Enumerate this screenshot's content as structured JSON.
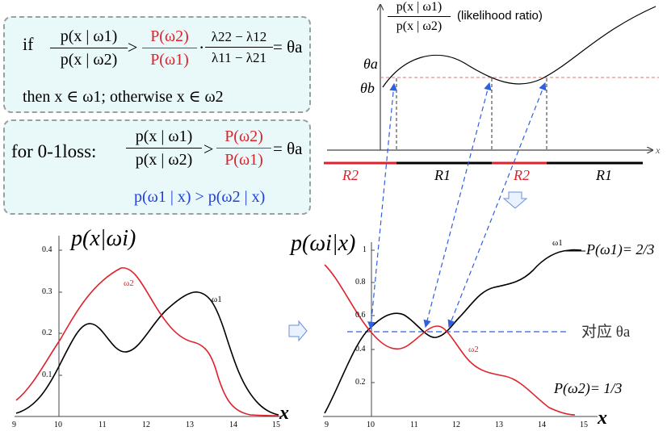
{
  "rule_box": {
    "if_word": "if",
    "likelihood_num": "p(x | ω1)",
    "likelihood_den": "p(x | ω2)",
    "gt": ">",
    "prior_num": "P(ω2)",
    "prior_den": "P(ω1)",
    "dot": "·",
    "loss_num": "λ22 − λ12",
    "loss_den": "λ11 − λ21",
    "equals_theta": "= θa",
    "then_line": "then   x ∈ ω1;  otherwise x ∈ ω2"
  },
  "zero_one_box": {
    "label": "for 0-1loss:",
    "likelihood_num": "p(x | ω1)",
    "likelihood_den": "p(x | ω2)",
    "gt": ">",
    "prior_num": "P(ω2)",
    "prior_den": "P(ω1)",
    "equals_theta": "= θa",
    "posterior_line": "p(ω1 | x) > p(ω2 | x)"
  },
  "ratio_plot": {
    "y_num": "p(x | ω1)",
    "y_den": "p(x | ω2)",
    "caption": "(likelihood ratio)",
    "theta_a": "θa",
    "theta_b": "θb",
    "x_label": "x",
    "regions": [
      "R2",
      "R1",
      "R2",
      "R1"
    ]
  },
  "likelihood_plot": {
    "title": "p(x|ωi)",
    "x_label": "x",
    "x_ticks": [
      "9",
      "10",
      "11",
      "12",
      "13",
      "14",
      "15"
    ],
    "y_ticks": [
      "0.1",
      "0.2",
      "0.3",
      "0.4"
    ],
    "curve_labels": {
      "w1": "ω1",
      "w2": "ω2"
    },
    "colors": {
      "w1": "#000000",
      "w2": "#e0202a"
    }
  },
  "posterior_plot": {
    "title": "p(ωi|x)",
    "x_label": "x",
    "x_ticks": [
      "9",
      "10",
      "11",
      "12",
      "13",
      "14",
      "15"
    ],
    "y_ticks": [
      "0.2",
      "0.4",
      "0.6",
      "0.8",
      "1"
    ],
    "curve_labels": {
      "w1": "ω1",
      "w2": "ω2"
    },
    "prior_w1": "P(ω1)= 2/3",
    "prior_w2": "P(ω2)= 1/3",
    "threshold_label": "对应 θa",
    "colors": {
      "w1": "#000000",
      "w2": "#e0202a",
      "threshold": "#3060e0"
    }
  }
}
